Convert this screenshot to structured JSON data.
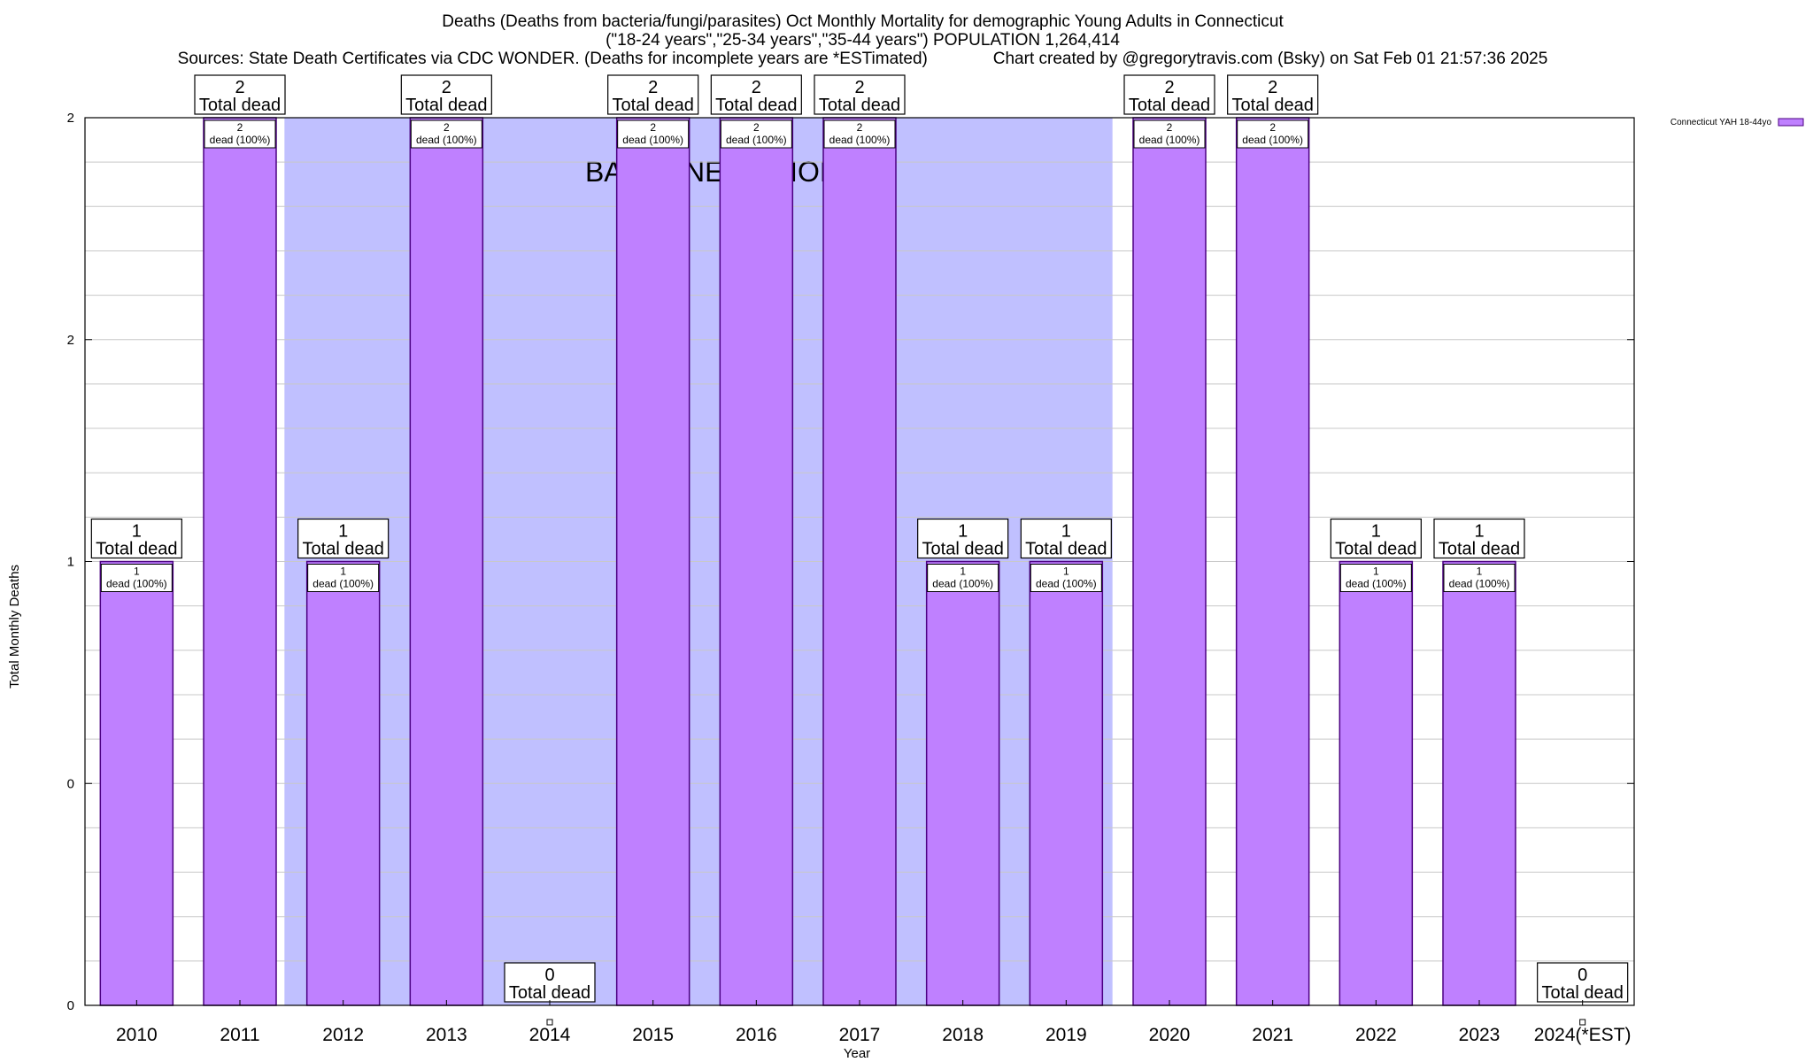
{
  "header": {
    "title_line1": "Deaths (Deaths from bacteria/fungi/parasites) Oct Monthly Mortality for demographic Young Adults in Connecticut",
    "title_line2": "(\"18-24 years\",\"25-34 years\",\"35-44 years\") POPULATION 1,264,414",
    "title_line3": "Sources: State Death Certificates via CDC WONDER. (Deaths for incomplete years are *ESTimated)              Chart created by @gregorytravis.com (Bsky) on Sat Feb 01 21:57:36 2025"
  },
  "chart_data": {
    "type": "bar",
    "xlabel": "Year",
    "ylabel": "Total Monthly Deaths",
    "categories": [
      "2010",
      "2011",
      "2012",
      "2013",
      "2014",
      "2015",
      "2016",
      "2017",
      "2018",
      "2019",
      "2020",
      "2021",
      "2022",
      "2023",
      "2024(*EST)"
    ],
    "series": [
      {
        "name": "Connecticut YAH 18-44yo",
        "values": [
          1,
          2,
          1,
          2,
          0,
          2,
          2,
          2,
          1,
          1,
          2,
          2,
          1,
          1,
          0
        ]
      }
    ],
    "ylim": [
      0,
      2
    ],
    "y_tick_labels": [
      "0",
      "0",
      "1",
      "2",
      "2"
    ],
    "y_ticks": [
      0,
      0.5,
      1,
      1.5,
      2
    ],
    "grid": true,
    "legend_position": "top-right",
    "total_label_text": "Total dead",
    "bar_label_suffix": "dead (100%)",
    "baseline": {
      "label": "BASELINE PERIOD",
      "start": "2012",
      "end": "2019"
    },
    "colors": {
      "bar": "#bf80ff",
      "bar_border": "#4b0082",
      "baseline": "#c0c0ff",
      "grid": "#c8c8c8"
    }
  }
}
